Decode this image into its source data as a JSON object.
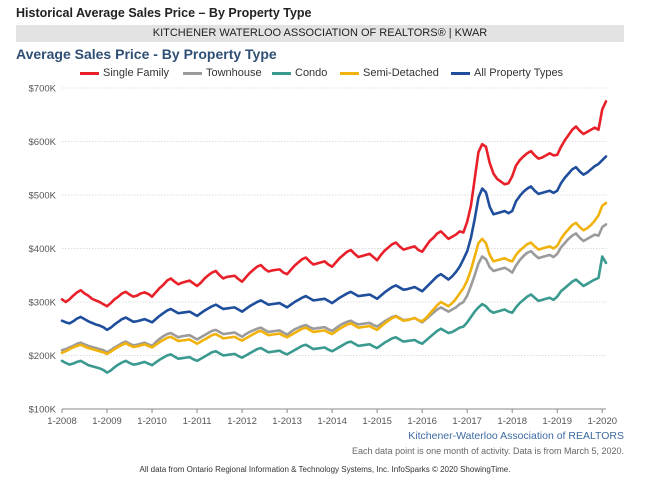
{
  "header": {
    "title": "Historical Average Sales Price – By Property Type",
    "organization": "KITCHENER WATERLOO ASSOCIATION OF REALTORS® | KWAR"
  },
  "colors": {
    "single_family": "#e8202a",
    "townhouse": "#9b9b9b",
    "condo": "#3a9a90",
    "semi_detached": "#f2b20c",
    "all_types": "#1f4e9c"
  },
  "chart_data": {
    "type": "line",
    "title": "Average Sales Price - By Property Type",
    "xlabel": "",
    "ylabel": "",
    "ylim": [
      100000,
      700000
    ],
    "yticks": [
      100000,
      200000,
      300000,
      400000,
      500000,
      600000,
      700000
    ],
    "ytick_labels": [
      "$100K",
      "$200K",
      "$300K",
      "$400K",
      "$500K",
      "$600K",
      "$700K"
    ],
    "xticks": [
      "1-2008",
      "1-2009",
      "1-2010",
      "1-2011",
      "1-2012",
      "1-2013",
      "1-2014",
      "1-2015",
      "1-2016",
      "1-2017",
      "1-2018",
      "1-2019",
      "1-2020"
    ],
    "x_start": "1-2008",
    "x_end": "2-2020",
    "grid": true,
    "legend_position": "top",
    "series": [
      {
        "name": "Single Family",
        "color": "#e8202a",
        "values": [
          305000,
          300000,
          305000,
          312000,
          318000,
          322000,
          316000,
          312000,
          306000,
          303000,
          300000,
          296000,
          292000,
          298000,
          305000,
          310000,
          316000,
          319000,
          314000,
          310000,
          312000,
          316000,
          318000,
          315000,
          310000,
          318000,
          326000,
          332000,
          340000,
          344000,
          338000,
          333000,
          336000,
          338000,
          340000,
          335000,
          330000,
          336000,
          344000,
          350000,
          355000,
          358000,
          350000,
          344000,
          347000,
          348000,
          349000,
          343000,
          338000,
          346000,
          354000,
          360000,
          366000,
          369000,
          362000,
          357000,
          359000,
          360000,
          361000,
          355000,
          352000,
          360000,
          368000,
          374000,
          380000,
          383000,
          376000,
          370000,
          372000,
          374000,
          376000,
          370000,
          366000,
          374000,
          382000,
          388000,
          394000,
          397000,
          390000,
          384000,
          386000,
          388000,
          390000,
          384000,
          378000,
          388000,
          396000,
          402000,
          408000,
          411000,
          404000,
          398000,
          400000,
          402000,
          404000,
          397000,
          394000,
          404000,
          414000,
          420000,
          428000,
          432000,
          425000,
          418000,
          422000,
          426000,
          432000,
          430000,
          450000,
          480000,
          530000,
          580000,
          595000,
          590000,
          560000,
          540000,
          530000,
          525000,
          520000,
          522000,
          535000,
          555000,
          565000,
          572000,
          578000,
          582000,
          574000,
          568000,
          570000,
          574000,
          578000,
          574000,
          575000,
          590000,
          602000,
          612000,
          622000,
          628000,
          620000,
          614000,
          618000,
          622000,
          626000,
          622000,
          660000,
          675000
        ]
      },
      {
        "name": "Townhouse",
        "color": "#9b9b9b",
        "values": [
          210000,
          212000,
          215000,
          218000,
          222000,
          224000,
          221000,
          218000,
          216000,
          214000,
          212000,
          210000,
          206000,
          210000,
          215000,
          219000,
          223000,
          226000,
          222000,
          219000,
          220000,
          222000,
          224000,
          221000,
          218000,
          225000,
          231000,
          236000,
          240000,
          242000,
          238000,
          234000,
          236000,
          237000,
          238000,
          234000,
          230000,
          234000,
          238000,
          242000,
          246000,
          248000,
          244000,
          240000,
          241000,
          242000,
          243000,
          239000,
          235000,
          240000,
          244000,
          247000,
          250000,
          252000,
          248000,
          244000,
          245000,
          246000,
          247000,
          243000,
          239000,
          244000,
          249000,
          252000,
          255000,
          257000,
          253000,
          250000,
          251000,
          252000,
          253000,
          249000,
          246000,
          251000,
          256000,
          260000,
          263000,
          265000,
          261000,
          258000,
          259000,
          260000,
          261000,
          257000,
          254000,
          259000,
          264000,
          268000,
          272000,
          274000,
          270000,
          266000,
          267000,
          268000,
          270000,
          266000,
          262000,
          268000,
          274000,
          280000,
          286000,
          290000,
          286000,
          282000,
          286000,
          290000,
          296000,
          300000,
          312000,
          330000,
          350000,
          372000,
          385000,
          380000,
          365000,
          358000,
          360000,
          362000,
          364000,
          360000,
          355000,
          368000,
          378000,
          386000,
          392000,
          395000,
          388000,
          382000,
          384000,
          386000,
          388000,
          384000,
          390000,
          402000,
          410000,
          418000,
          424000,
          428000,
          420000,
          414000,
          418000,
          422000,
          426000,
          424000,
          440000,
          445000
        ]
      },
      {
        "name": "Condo",
        "color": "#3a9a90",
        "values": [
          190000,
          186000,
          183000,
          185000,
          188000,
          190000,
          186000,
          182000,
          180000,
          178000,
          176000,
          173000,
          168000,
          172000,
          178000,
          183000,
          187000,
          190000,
          186000,
          183000,
          184000,
          186000,
          188000,
          185000,
          182000,
          187000,
          192000,
          196000,
          200000,
          202000,
          198000,
          194000,
          195000,
          196000,
          197000,
          193000,
          190000,
          194000,
          198000,
          202000,
          206000,
          208000,
          204000,
          200000,
          201000,
          202000,
          203000,
          199000,
          196000,
          200000,
          204000,
          208000,
          212000,
          214000,
          210000,
          206000,
          207000,
          208000,
          209000,
          205000,
          202000,
          206000,
          210000,
          214000,
          218000,
          220000,
          216000,
          212000,
          213000,
          214000,
          215000,
          211000,
          208000,
          212000,
          216000,
          220000,
          224000,
          226000,
          222000,
          218000,
          219000,
          220000,
          221000,
          217000,
          214000,
          219000,
          224000,
          228000,
          232000,
          234000,
          230000,
          226000,
          227000,
          228000,
          229000,
          225000,
          222000,
          228000,
          234000,
          240000,
          246000,
          250000,
          246000,
          242000,
          244000,
          248000,
          252000,
          254000,
          262000,
          272000,
          282000,
          290000,
          296000,
          292000,
          284000,
          280000,
          282000,
          284000,
          286000,
          282000,
          280000,
          290000,
          298000,
          304000,
          310000,
          314000,
          308000,
          302000,
          304000,
          306000,
          308000,
          304000,
          310000,
          320000,
          326000,
          332000,
          338000,
          342000,
          336000,
          330000,
          334000,
          338000,
          342000,
          345000,
          385000,
          373000
        ]
      },
      {
        "name": "Semi-Detached",
        "color": "#f2b20c",
        "values": [
          205000,
          208000,
          212000,
          215000,
          218000,
          220000,
          217000,
          214000,
          212000,
          210000,
          208000,
          206000,
          203000,
          207000,
          212000,
          216000,
          220000,
          223000,
          219000,
          216000,
          217000,
          219000,
          221000,
          218000,
          215000,
          220000,
          225000,
          229000,
          233000,
          235000,
          231000,
          227000,
          228000,
          229000,
          230000,
          226000,
          222000,
          226000,
          230000,
          234000,
          238000,
          240000,
          236000,
          232000,
          233000,
          234000,
          235000,
          231000,
          228000,
          232000,
          236000,
          240000,
          244000,
          246000,
          242000,
          238000,
          239000,
          240000,
          241000,
          237000,
          234000,
          238000,
          242000,
          246000,
          250000,
          252000,
          248000,
          244000,
          245000,
          246000,
          247000,
          243000,
          240000,
          245000,
          250000,
          254000,
          258000,
          260000,
          256000,
          252000,
          253000,
          254000,
          255000,
          251000,
          248000,
          254000,
          260000,
          265000,
          270000,
          273000,
          269000,
          265000,
          266000,
          268000,
          270000,
          266000,
          264000,
          270000,
          278000,
          286000,
          294000,
          300000,
          296000,
          292000,
          298000,
          306000,
          316000,
          326000,
          340000,
          360000,
          385000,
          410000,
          418000,
          410000,
          388000,
          376000,
          378000,
          380000,
          382000,
          378000,
          376000,
          388000,
          396000,
          402000,
          408000,
          411000,
          404000,
          398000,
          400000,
          402000,
          404000,
          400000,
          405000,
          418000,
          428000,
          436000,
          444000,
          448000,
          440000,
          434000,
          438000,
          444000,
          452000,
          462000,
          480000,
          485000
        ]
      },
      {
        "name": "All Property Types",
        "color": "#1f4e9c",
        "values": [
          265000,
          262000,
          260000,
          264000,
          269000,
          272000,
          268000,
          264000,
          261000,
          258000,
          256000,
          253000,
          248000,
          252000,
          258000,
          263000,
          268000,
          271000,
          267000,
          263000,
          264000,
          266000,
          268000,
          265000,
          262000,
          268000,
          274000,
          279000,
          284000,
          287000,
          283000,
          279000,
          280000,
          281000,
          282000,
          278000,
          274000,
          279000,
          284000,
          288000,
          292000,
          295000,
          291000,
          287000,
          288000,
          289000,
          290000,
          286000,
          282000,
          287000,
          292000,
          296000,
          300000,
          303000,
          299000,
          295000,
          296000,
          297000,
          298000,
          294000,
          290000,
          295000,
          300000,
          304000,
          308000,
          311000,
          307000,
          303000,
          304000,
          305000,
          306000,
          302000,
          298000,
          303000,
          308000,
          312000,
          316000,
          319000,
          315000,
          311000,
          312000,
          313000,
          314000,
          310000,
          306000,
          312000,
          318000,
          323000,
          328000,
          331000,
          327000,
          323000,
          324000,
          326000,
          328000,
          324000,
          320000,
          327000,
          334000,
          341000,
          348000,
          352000,
          347000,
          342000,
          348000,
          356000,
          366000,
          380000,
          395000,
          420000,
          455000,
          495000,
          512000,
          505000,
          478000,
          464000,
          466000,
          468000,
          470000,
          466000,
          470000,
          488000,
          498000,
          506000,
          512000,
          516000,
          508000,
          502000,
          504000,
          506000,
          508000,
          504000,
          508000,
          522000,
          532000,
          540000,
          548000,
          552000,
          544000,
          538000,
          542000,
          548000,
          554000,
          558000,
          565000,
          572000
        ]
      }
    ]
  },
  "source": {
    "attribution": "Kitchener-Waterloo Association of REALTORS",
    "note": "Each data point is one month of activity. Data is from March 5, 2020."
  },
  "footer": {
    "text": "All data from Ontario Regional Information & Technology Systems, Inc. InfoSparks © 2020 ShowingTime."
  }
}
